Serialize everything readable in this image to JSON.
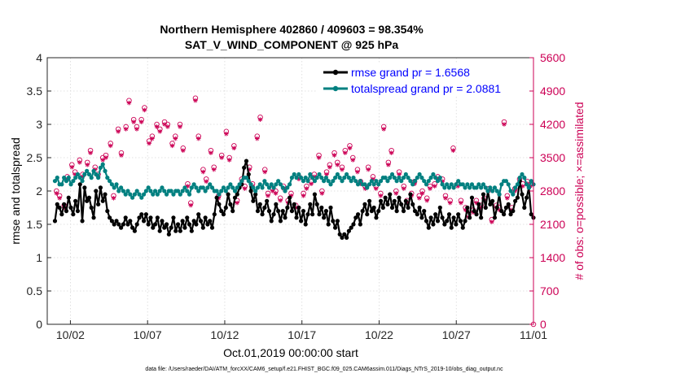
{
  "chart_data": {
    "type": "line",
    "title_line1": "Northern Hemisphere 402860 / 409603 = 98.354%",
    "title_line2": "SAT_V_WIND_COMPONENT @ 925 hPa",
    "xlabel": "Oct.01,2019 00:00:00 start",
    "ylabel_left": "rmse and totalspread",
    "ylabel_right": "# of obs: o=possible; ×=assimilated",
    "xlim": [
      0.5,
      32.0
    ],
    "ylim_left": [
      0,
      4
    ],
    "ylim_right": [
      0,
      5600
    ],
    "x_ticks": [
      2,
      7,
      12,
      17,
      22,
      27,
      32
    ],
    "x_tick_labels": [
      "10/02",
      "10/07",
      "10/12",
      "10/17",
      "10/22",
      "10/27",
      "11/01"
    ],
    "y_ticks_left": [
      0,
      0.5,
      1,
      1.5,
      2,
      2.5,
      3,
      3.5,
      4
    ],
    "y_tick_labels_left": [
      "0",
      "0.5",
      "1",
      "1.5",
      "2",
      "2.5",
      "3",
      "3.5",
      "4"
    ],
    "y_ticks_right": [
      0,
      700,
      1400,
      2100,
      2800,
      3500,
      4200,
      4900,
      5600
    ],
    "y_tick_labels_right": [
      "0",
      "700",
      "1400",
      "2100",
      "2800",
      "3500",
      "4200",
      "4900",
      "5600"
    ],
    "colors": {
      "rmse": "#000000",
      "spread": "#008080",
      "obs": "#cc0055",
      "legend_text": "#0000ff",
      "right_axis": "#cc0055"
    },
    "series": [
      {
        "name": "rmse grand pr = 1.6568",
        "values": [
          1.55,
          1.8,
          1.75,
          1.65,
          1.8,
          1.7,
          1.9,
          1.75,
          1.65,
          1.85,
          1.7,
          2.1,
          1.55,
          2.05,
          1.85,
          1.9,
          1.75,
          1.6,
          2.0,
          1.8,
          2.05,
          1.85,
          1.95,
          1.7,
          1.6,
          1.55,
          1.5,
          1.55,
          1.5,
          1.45,
          1.5,
          1.6,
          1.5,
          1.55,
          1.45,
          1.4,
          1.5,
          1.6,
          1.65,
          1.55,
          1.65,
          1.5,
          1.6,
          1.45,
          1.5,
          1.6,
          1.4,
          1.55,
          1.45,
          1.5,
          1.35,
          1.45,
          1.6,
          1.4,
          1.5,
          1.4,
          1.55,
          1.45,
          1.6,
          1.5,
          1.4,
          1.55,
          1.5,
          1.65,
          1.55,
          1.45,
          1.6,
          1.5,
          1.55,
          1.45,
          1.65,
          1.9,
          1.8,
          1.7,
          1.65,
          1.75,
          1.95,
          1.8,
          1.7,
          1.9,
          1.95,
          2.05,
          2.1,
          2.35,
          2.45,
          2.25,
          2.0,
          1.85,
          1.95,
          1.7,
          1.8,
          1.65,
          1.75,
          1.85,
          1.7,
          1.55,
          1.65,
          1.8,
          1.7,
          1.55,
          1.7,
          1.6,
          1.75,
          1.9,
          1.7,
          1.8,
          1.6,
          1.75,
          1.55,
          1.7,
          1.5,
          1.65,
          1.8,
          1.65,
          1.95,
          1.8,
          1.65,
          1.75,
          1.6,
          1.7,
          1.5,
          1.75,
          1.55,
          1.45,
          1.55,
          1.35,
          1.3,
          1.35,
          1.3,
          1.4,
          1.45,
          1.5,
          1.6,
          1.65,
          1.5,
          1.7,
          1.8,
          1.65,
          1.85,
          1.7,
          1.75,
          1.6,
          1.7,
          1.85,
          1.75,
          1.9,
          1.8,
          1.95,
          1.75,
          1.85,
          1.7,
          1.9,
          1.8,
          1.7,
          1.85,
          1.75,
          1.95,
          1.8,
          1.7,
          1.65,
          1.75,
          1.6,
          1.7,
          1.55,
          1.45,
          1.6,
          1.5,
          1.65,
          1.55,
          1.75,
          1.6,
          1.5,
          1.55,
          1.65,
          1.45,
          1.6,
          1.5,
          1.65,
          1.55,
          1.45,
          1.55,
          1.75,
          1.6,
          1.9,
          1.7,
          1.65,
          1.8,
          1.6,
          1.95,
          1.75,
          2.0,
          1.8,
          1.85,
          1.6,
          1.75,
          1.95,
          1.7,
          1.65,
          1.75,
          1.8,
          1.65,
          1.7,
          1.85,
          1.9,
          2.15,
          1.95,
          1.75,
          1.9,
          2.05,
          1.65,
          1.6
        ]
      },
      {
        "name": "totalspread grand pr = 2.0881",
        "values": [
          2.15,
          2.2,
          2.1,
          2.1,
          2.2,
          2.15,
          2.2,
          2.1,
          2.15,
          2.2,
          2.25,
          2.2,
          2.15,
          2.25,
          2.3,
          2.25,
          2.2,
          2.3,
          2.25,
          2.2,
          2.35,
          2.4,
          2.3,
          2.2,
          2.15,
          2.1,
          2.05,
          2.1,
          2.0,
          2.05,
          2.0,
          1.95,
          2.0,
          1.95,
          1.9,
          1.95,
          2.0,
          1.95,
          1.9,
          1.95,
          2.0,
          2.05,
          2.0,
          1.95,
          2.0,
          1.95,
          2.0,
          2.05,
          2.0,
          1.95,
          2.0,
          2.0,
          1.95,
          2.0,
          2.0,
          1.95,
          2.0,
          2.05,
          2.0,
          1.95,
          2.05,
          2.1,
          2.05,
          2.0,
          2.05,
          2.05,
          2.0,
          2.05,
          2.1,
          2.05,
          2.0,
          2.0,
          1.95,
          2.0,
          2.05,
          2.0,
          2.05,
          2.1,
          2.05,
          2.0,
          2.05,
          2.1,
          2.15,
          2.2,
          2.2,
          2.15,
          2.1,
          2.05,
          2.0,
          2.05,
          2.1,
          2.05,
          2.15,
          2.1,
          2.05,
          2.1,
          2.05,
          2.1,
          2.15,
          2.1,
          2.05,
          2.0,
          2.05,
          2.1,
          2.2,
          2.25,
          2.2,
          2.25,
          2.2,
          2.15,
          2.2,
          2.15,
          2.25,
          2.2,
          2.15,
          2.2,
          2.25,
          2.2,
          2.15,
          2.2,
          2.15,
          2.1,
          2.15,
          2.2,
          2.25,
          2.2,
          2.15,
          2.2,
          2.25,
          2.2,
          2.15,
          2.2,
          2.15,
          2.1,
          2.15,
          2.1,
          2.1,
          2.05,
          2.1,
          2.15,
          2.1,
          2.15,
          2.1,
          2.15,
          2.2,
          2.2,
          2.15,
          2.2,
          2.25,
          2.2,
          2.15,
          2.2,
          2.15,
          2.2,
          2.25,
          2.2,
          2.15,
          2.1,
          2.15,
          2.2,
          2.25,
          2.2,
          2.15,
          2.1,
          2.15,
          2.2,
          2.25,
          2.2,
          2.15,
          2.2,
          2.1,
          2.05,
          2.1,
          2.05,
          2.1,
          2.05,
          2.1,
          2.15,
          2.1,
          2.1,
          2.05,
          2.1,
          2.05,
          2.1,
          2.05,
          2.05,
          2.1,
          2.05,
          2.1,
          2.05,
          2.0,
          2.05,
          2.0,
          2.05,
          2.0,
          1.95,
          2.1,
          2.15,
          2.15,
          2.1,
          2.0,
          1.95,
          2.05,
          2.1,
          2.2,
          2.25,
          2.2,
          2.1,
          2.05,
          2.15,
          2.1
        ]
      }
    ],
    "obs_possible": [
      [
        1.1,
        2800
      ],
      [
        1.3,
        2700
      ],
      [
        1.6,
        2500
      ],
      [
        1.8,
        3100
      ],
      [
        2.1,
        3350
      ],
      [
        2.3,
        3200
      ],
      [
        2.6,
        3450
      ],
      [
        2.8,
        3150
      ],
      [
        3.1,
        3400
      ],
      [
        3.3,
        3650
      ],
      [
        3.6,
        3300
      ],
      [
        3.8,
        3150
      ],
      [
        4.1,
        3500
      ],
      [
        4.3,
        3550
      ],
      [
        4.6,
        3800
      ],
      [
        4.8,
        2700
      ],
      [
        5.1,
        4100
      ],
      [
        5.3,
        3600
      ],
      [
        5.6,
        4150
      ],
      [
        5.8,
        4700
      ],
      [
        6.1,
        4300
      ],
      [
        6.3,
        4150
      ],
      [
        6.6,
        4300
      ],
      [
        6.8,
        4550
      ],
      [
        7.1,
        3850
      ],
      [
        7.3,
        3950
      ],
      [
        7.6,
        4200
      ],
      [
        7.8,
        4100
      ],
      [
        8.1,
        4250
      ],
      [
        8.3,
        4200
      ],
      [
        8.6,
        3800
      ],
      [
        8.8,
        3950
      ],
      [
        9.1,
        4200
      ],
      [
        9.3,
        3700
      ],
      [
        9.6,
        2950
      ],
      [
        9.8,
        2550
      ],
      [
        10.1,
        4750
      ],
      [
        10.3,
        3950
      ],
      [
        10.6,
        3250
      ],
      [
        10.8,
        3050
      ],
      [
        11.1,
        3650
      ],
      [
        11.3,
        3300
      ],
      [
        11.6,
        2700
      ],
      [
        11.8,
        3550
      ],
      [
        12.1,
        4050
      ],
      [
        12.3,
        3500
      ],
      [
        12.6,
        3750
      ],
      [
        12.8,
        2600
      ],
      [
        13.1,
        3050
      ],
      [
        13.3,
        2900
      ],
      [
        13.6,
        3300
      ],
      [
        13.8,
        2950
      ],
      [
        14.1,
        3950
      ],
      [
        14.3,
        4350
      ],
      [
        14.6,
        3250
      ],
      [
        14.8,
        2750
      ],
      [
        15.1,
        2850
      ],
      [
        15.3,
        2800
      ],
      [
        15.6,
        2650
      ],
      [
        15.8,
        2900
      ],
      [
        16.1,
        2600
      ],
      [
        16.3,
        2750
      ],
      [
        16.6,
        2500
      ],
      [
        16.8,
        3100
      ],
      [
        17.1,
        2750
      ],
      [
        17.3,
        2900
      ],
      [
        17.6,
        3000
      ],
      [
        17.8,
        3150
      ],
      [
        18.1,
        3550
      ],
      [
        18.3,
        2800
      ],
      [
        18.6,
        3200
      ],
      [
        18.8,
        3350
      ],
      [
        19.1,
        3600
      ],
      [
        19.3,
        3400
      ],
      [
        19.6,
        3300
      ],
      [
        19.8,
        3650
      ],
      [
        20.1,
        3750
      ],
      [
        20.3,
        3500
      ],
      [
        20.6,
        3250
      ],
      [
        20.8,
        3000
      ],
      [
        21.1,
        2900
      ],
      [
        21.3,
        3300
      ],
      [
        21.6,
        3100
      ],
      [
        21.8,
        2900
      ],
      [
        22.1,
        2750
      ],
      [
        22.3,
        4150
      ],
      [
        22.6,
        3400
      ],
      [
        22.8,
        3650
      ],
      [
        23.1,
        2800
      ],
      [
        23.3,
        3200
      ],
      [
        23.6,
        2900
      ],
      [
        23.8,
        2600
      ],
      [
        24.1,
        2750
      ],
      [
        24.3,
        3000
      ],
      [
        24.6,
        2700
      ],
      [
        24.8,
        2800
      ],
      [
        25.1,
        2650
      ],
      [
        25.3,
        2900
      ],
      [
        25.6,
        2950
      ],
      [
        25.8,
        3100
      ],
      [
        26.1,
        3050
      ],
      [
        26.3,
        2700
      ],
      [
        26.6,
        2600
      ],
      [
        26.8,
        3700
      ],
      [
        27.1,
        2950
      ],
      [
        27.3,
        2600
      ],
      [
        27.6,
        2450
      ],
      [
        27.8,
        2300
      ],
      [
        28.1,
        2400
      ],
      [
        28.3,
        2600
      ],
      [
        28.6,
        2500
      ],
      [
        28.8,
        2650
      ],
      [
        29.1,
        2850
      ],
      [
        29.3,
        2200
      ],
      [
        29.6,
        2500
      ],
      [
        29.8,
        2450
      ],
      [
        30.1,
        4250
      ],
      [
        30.3,
        2700
      ],
      [
        30.6,
        2450
      ],
      [
        30.8,
        2850
      ],
      [
        31.1,
        3050
      ],
      [
        31.3,
        2950
      ],
      [
        31.6,
        3000
      ],
      [
        31.8,
        2950
      ],
      [
        32.0,
        0
      ]
    ],
    "obs_assimilated": [
      [
        1.1,
        2750
      ],
      [
        1.3,
        2650
      ],
      [
        1.6,
        2450
      ],
      [
        1.8,
        3050
      ],
      [
        2.1,
        3300
      ],
      [
        2.3,
        3150
      ],
      [
        2.6,
        3400
      ],
      [
        2.8,
        3100
      ],
      [
        3.1,
        3350
      ],
      [
        3.3,
        3600
      ],
      [
        3.6,
        3250
      ],
      [
        3.8,
        3100
      ],
      [
        4.1,
        3450
      ],
      [
        4.3,
        3500
      ],
      [
        4.6,
        3750
      ],
      [
        4.8,
        2650
      ],
      [
        5.1,
        4050
      ],
      [
        5.3,
        3550
      ],
      [
        5.6,
        4100
      ],
      [
        5.8,
        4650
      ],
      [
        6.1,
        4250
      ],
      [
        6.3,
        4100
      ],
      [
        6.6,
        4250
      ],
      [
        6.8,
        4500
      ],
      [
        7.1,
        3800
      ],
      [
        7.3,
        3900
      ],
      [
        7.6,
        4150
      ],
      [
        7.8,
        4050
      ],
      [
        8.1,
        4200
      ],
      [
        8.3,
        4150
      ],
      [
        8.6,
        3750
      ],
      [
        8.8,
        3900
      ],
      [
        9.1,
        4150
      ],
      [
        9.3,
        3650
      ],
      [
        9.6,
        2900
      ],
      [
        9.8,
        2500
      ],
      [
        10.1,
        4700
      ],
      [
        10.3,
        3900
      ],
      [
        10.6,
        3200
      ],
      [
        10.8,
        3000
      ],
      [
        11.1,
        3600
      ],
      [
        11.3,
        3250
      ],
      [
        11.6,
        2650
      ],
      [
        11.8,
        3500
      ],
      [
        12.1,
        4000
      ],
      [
        12.3,
        3450
      ],
      [
        12.6,
        3700
      ],
      [
        12.8,
        2550
      ],
      [
        13.1,
        3000
      ],
      [
        13.3,
        2850
      ],
      [
        13.6,
        3250
      ],
      [
        13.8,
        2900
      ],
      [
        14.1,
        3900
      ],
      [
        14.3,
        4300
      ],
      [
        14.6,
        3200
      ],
      [
        14.8,
        2700
      ],
      [
        15.1,
        2800
      ],
      [
        15.3,
        2750
      ],
      [
        15.6,
        2600
      ],
      [
        15.8,
        2850
      ],
      [
        16.1,
        2550
      ],
      [
        16.3,
        2700
      ],
      [
        16.6,
        2450
      ],
      [
        16.8,
        3050
      ],
      [
        17.1,
        2700
      ],
      [
        17.3,
        2850
      ],
      [
        17.6,
        2950
      ],
      [
        17.8,
        3100
      ],
      [
        18.1,
        3500
      ],
      [
        18.3,
        2750
      ],
      [
        18.6,
        3150
      ],
      [
        18.8,
        3300
      ],
      [
        19.1,
        3550
      ],
      [
        19.3,
        3350
      ],
      [
        19.6,
        3250
      ],
      [
        19.8,
        3600
      ],
      [
        20.1,
        3700
      ],
      [
        20.3,
        3450
      ],
      [
        20.6,
        3200
      ],
      [
        20.8,
        2950
      ],
      [
        21.1,
        2850
      ],
      [
        21.3,
        3250
      ],
      [
        21.6,
        3050
      ],
      [
        21.8,
        2850
      ],
      [
        22.1,
        2700
      ],
      [
        22.3,
        4100
      ],
      [
        22.6,
        3350
      ],
      [
        22.8,
        3600
      ],
      [
        23.1,
        2750
      ],
      [
        23.3,
        3150
      ],
      [
        23.6,
        2850
      ],
      [
        23.8,
        2550
      ],
      [
        24.1,
        2700
      ],
      [
        24.3,
        2950
      ],
      [
        24.6,
        2650
      ],
      [
        24.8,
        2750
      ],
      [
        25.1,
        2600
      ],
      [
        25.3,
        2850
      ],
      [
        25.6,
        2900
      ],
      [
        25.8,
        3050
      ],
      [
        26.1,
        3000
      ],
      [
        26.3,
        2650
      ],
      [
        26.6,
        2550
      ],
      [
        26.8,
        3650
      ],
      [
        27.1,
        2900
      ],
      [
        27.3,
        2550
      ],
      [
        27.6,
        2400
      ],
      [
        27.8,
        2250
      ],
      [
        28.1,
        2350
      ],
      [
        28.3,
        2550
      ],
      [
        28.6,
        2450
      ],
      [
        28.8,
        2600
      ],
      [
        29.1,
        2800
      ],
      [
        29.3,
        2150
      ],
      [
        29.6,
        2450
      ],
      [
        29.8,
        2400
      ],
      [
        30.1,
        4200
      ],
      [
        30.3,
        2650
      ],
      [
        30.6,
        2400
      ],
      [
        30.8,
        2800
      ],
      [
        31.1,
        3000
      ],
      [
        31.3,
        2900
      ],
      [
        31.6,
        2950
      ],
      [
        31.8,
        2900
      ]
    ]
  },
  "legend": {
    "rmse_label": "rmse grand pr = 1.6568",
    "spread_label": "totalspread grand pr = 2.0881"
  },
  "footer": "data file: /Users/raeder/DAI/ATM_forcXX/CAM6_setup/f.e21.FHIST_BGC.f09_025.CAM6assim.011/Diags_NTrS_2019-10/obs_diag_output.nc"
}
